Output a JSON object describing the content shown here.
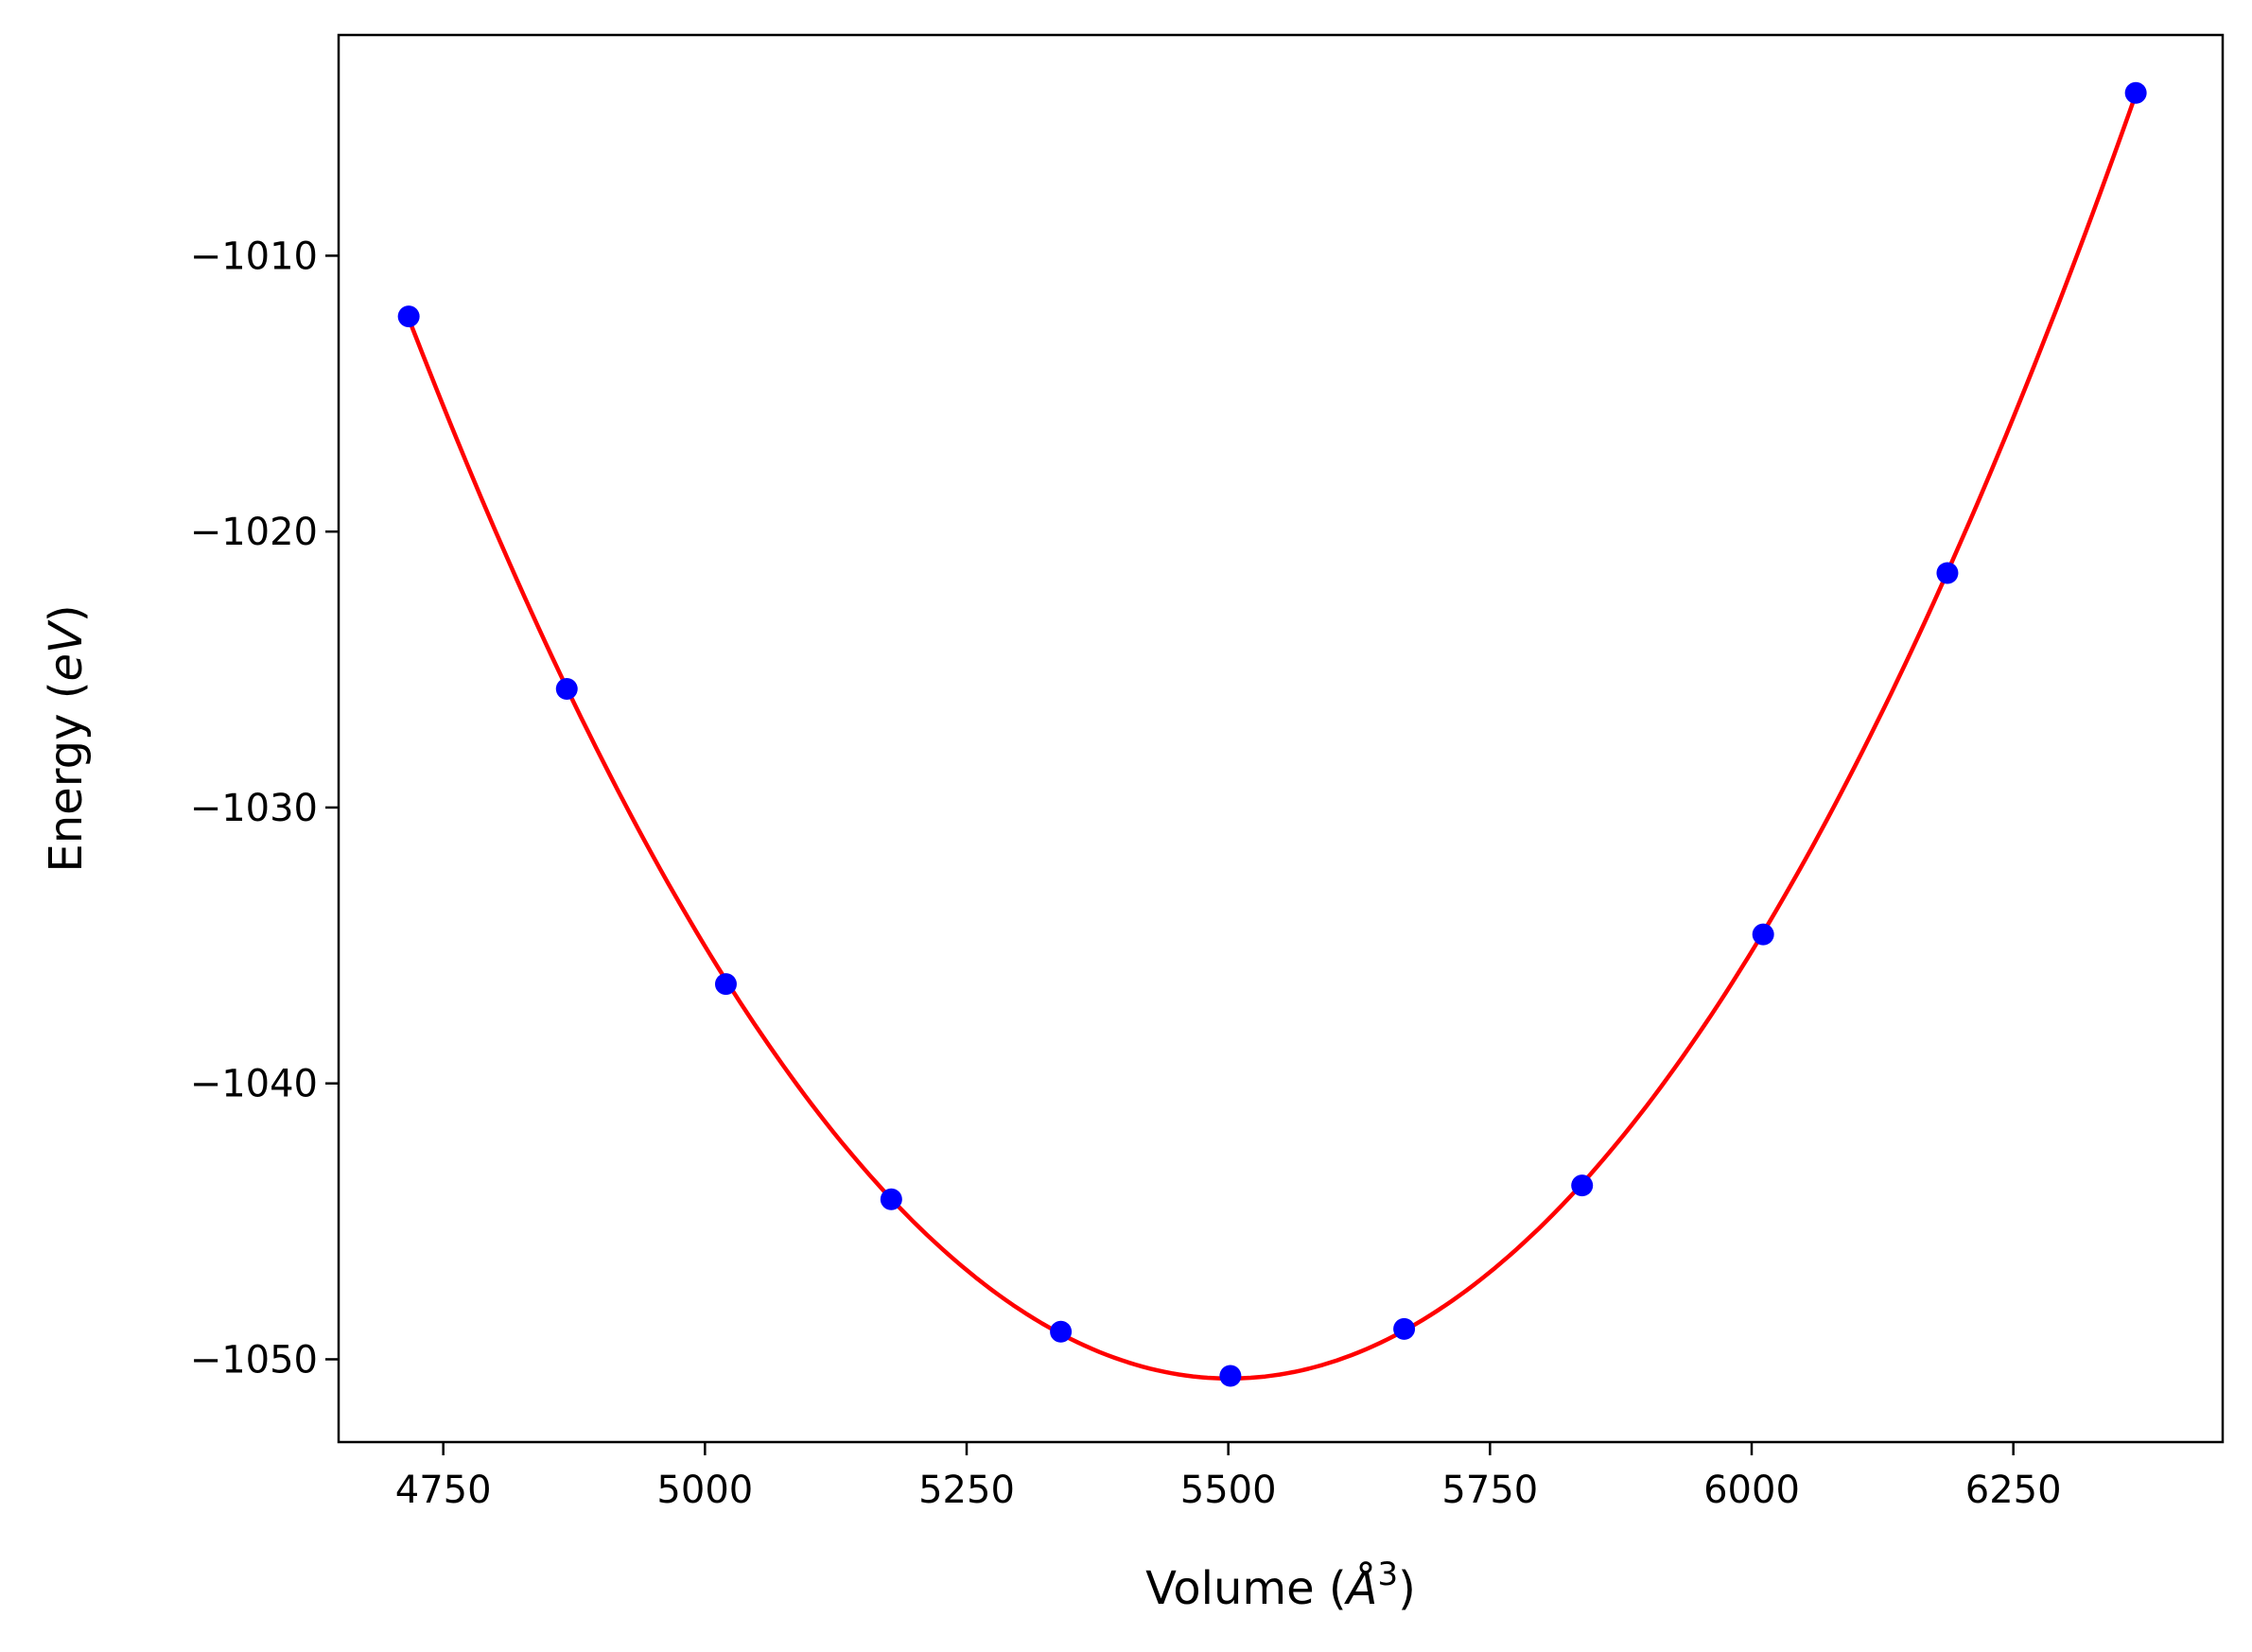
{
  "chart_data": {
    "type": "scatter",
    "title": "",
    "xlabel": "Volume (Å³)",
    "xlabel_parts": {
      "main": "Volume (",
      "symbol": "Å",
      "power": "3",
      "close": ")"
    },
    "ylabel": "Energy (eV)",
    "ylabel_parts": {
      "main": "Energy (",
      "unit": "eV",
      "close": ")"
    },
    "xlim": [
      4650,
      6450
    ],
    "ylim": [
      -1053,
      -1002
    ],
    "x_ticks": [
      4750,
      5000,
      5250,
      5500,
      5750,
      6000,
      6250
    ],
    "x_tick_labels": [
      "4750",
      "5000",
      "5250",
      "5500",
      "5750",
      "6000",
      "6250"
    ],
    "y_ticks": [
      -1050,
      -1040,
      -1030,
      -1020,
      -1010
    ],
    "y_tick_labels": [
      "−1050",
      "−1040",
      "−1030",
      "−1020",
      "−1010"
    ],
    "grid": false,
    "legend": "none",
    "series": [
      {
        "kind": "points",
        "color": "#0000ff",
        "x": [
          4717,
          4868,
          5020,
          5178,
          5340,
          5502,
          5668,
          5838,
          6011,
          6187,
          6367
        ],
        "y": [
          -1012.2,
          -1025.7,
          -1036.4,
          -1044.2,
          -1049.0,
          -1050.6,
          -1048.9,
          -1043.7,
          -1034.6,
          -1021.5,
          -1004.1
        ]
      },
      {
        "kind": "fit-curve",
        "color": "#ff0000",
        "x_min": 4717,
        "x_max": 6367
      }
    ]
  }
}
